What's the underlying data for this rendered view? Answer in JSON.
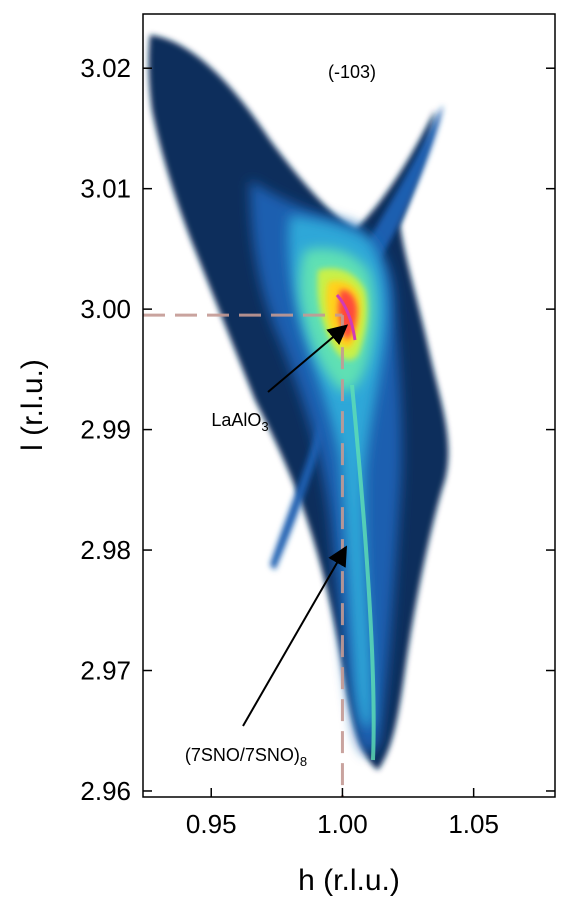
{
  "chart_data": {
    "type": "heatmap",
    "title": "(-103)",
    "xlabel": "h (r.l.u.)",
    "ylabel": "l (r.l.u.)",
    "xlim": [
      0.924,
      1.081
    ],
    "ylim": [
      2.9595,
      3.0245
    ],
    "x_ticks": [
      0.95,
      1.0,
      1.05
    ],
    "x_tick_labels": [
      "0.95",
      "1.00",
      "1.05"
    ],
    "y_ticks": [
      2.96,
      2.97,
      2.98,
      2.99,
      3.0,
      3.01,
      3.02
    ],
    "y_tick_labels": [
      "2.96",
      "2.97",
      "2.98",
      "2.99",
      "3.00",
      "3.01",
      "3.02"
    ],
    "colormap": [
      "#0b2d5b",
      "#1d5fb0",
      "#2ea7d8",
      "#5fe0b4",
      "#c8f04a",
      "#ffd21e",
      "#ff4a3a",
      "#d23bb5"
    ],
    "features": [
      {
        "name": "LaAlO",
        "subscript": "3",
        "h": 1.0,
        "l": 2.9995
      },
      {
        "name": "(7SNO/7SNO)",
        "subscript": "8",
        "h": 1.0,
        "l": 2.9605
      }
    ],
    "reference_lines": {
      "h": 1.0,
      "l": 2.9995,
      "color": "#c49a94"
    }
  }
}
